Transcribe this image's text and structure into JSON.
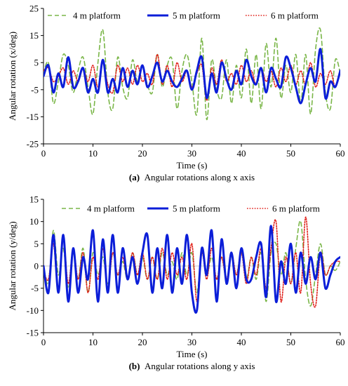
{
  "chart_data": [
    {
      "type": "line",
      "caption_prefix": "(a)",
      "caption": "Angular rotations along x axis",
      "xlabel": "Time (s)",
      "ylabel": "Angular rotation (x/deg)",
      "xlim": [
        0,
        60
      ],
      "ylim": [
        -25,
        25
      ],
      "xticks": [
        0,
        10,
        20,
        30,
        40,
        50,
        60
      ],
      "yticks": [
        -25,
        -15,
        -5,
        5,
        15,
        25
      ],
      "legend_position": "top",
      "grid": false,
      "series": [
        {
          "name": "4 m platform",
          "style": "dashed",
          "color": "#7ab648",
          "x": [
            0,
            1,
            2,
            3,
            4,
            5,
            6,
            7,
            8,
            9,
            10,
            11,
            12,
            13,
            14,
            15,
            16,
            17,
            18,
            19,
            20,
            21,
            22,
            23,
            24,
            25,
            26,
            27,
            28,
            29,
            30,
            31,
            32,
            33,
            34,
            35,
            36,
            37,
            38,
            39,
            40,
            41,
            42,
            43,
            44,
            45,
            46,
            47,
            48,
            49,
            50,
            51,
            52,
            53,
            54,
            55,
            56,
            57,
            58,
            59,
            60
          ],
          "y": [
            1,
            5,
            -10,
            -2,
            8,
            4,
            -6,
            2,
            7,
            -4,
            -14,
            5,
            17,
            -6,
            -12,
            7,
            -4,
            -8,
            6,
            -2,
            4,
            -3,
            -6,
            8,
            -4,
            4,
            6,
            -12,
            2,
            8,
            -2,
            -14,
            14,
            -16,
            6,
            -5,
            -8,
            6,
            -10,
            4,
            -8,
            10,
            -10,
            8,
            -12,
            12,
            -4,
            14,
            -8,
            4,
            -6,
            8,
            -10,
            8,
            -14,
            10,
            17,
            -6,
            -12,
            6,
            1
          ]
        },
        {
          "name": "5 m platform",
          "style": "solid",
          "color": "#0b1ed8",
          "x": [
            0,
            1,
            2,
            3,
            4,
            5,
            6,
            7,
            8,
            9,
            10,
            11,
            12,
            13,
            14,
            15,
            16,
            17,
            18,
            19,
            20,
            21,
            22,
            23,
            24,
            25,
            26,
            27,
            28,
            29,
            30,
            31,
            32,
            33,
            34,
            35,
            36,
            37,
            38,
            39,
            40,
            41,
            42,
            43,
            44,
            45,
            46,
            47,
            48,
            49,
            50,
            51,
            52,
            53,
            54,
            55,
            56,
            57,
            58,
            59,
            60
          ],
          "y": [
            0,
            4,
            -6,
            1,
            -4,
            7,
            -4,
            -2,
            3,
            -6,
            -1,
            -6,
            6,
            -6,
            -1,
            -6,
            3,
            -4,
            2,
            -3,
            4,
            -4,
            0,
            5,
            -2,
            2,
            -2,
            -4,
            -1,
            2,
            -5,
            2,
            7,
            -8,
            1,
            -6,
            5,
            -1,
            -5,
            2,
            -3,
            6,
            0,
            -3,
            3,
            -6,
            3,
            -1,
            -4,
            7,
            3,
            -4,
            -10,
            -3,
            3,
            -2,
            10,
            -8,
            -2,
            -4,
            2
          ]
        },
        {
          "name": "6 m platform",
          "style": "dotted",
          "color": "#e0201a",
          "x": [
            0,
            1,
            2,
            3,
            4,
            5,
            6,
            7,
            8,
            9,
            10,
            11,
            12,
            13,
            14,
            15,
            16,
            17,
            18,
            19,
            20,
            21,
            22,
            23,
            24,
            25,
            26,
            27,
            28,
            29,
            30,
            31,
            32,
            33,
            34,
            35,
            36,
            37,
            38,
            39,
            40,
            41,
            42,
            43,
            44,
            45,
            46,
            47,
            48,
            49,
            50,
            51,
            52,
            53,
            54,
            55,
            56,
            57,
            58,
            59,
            60
          ],
          "y": [
            2,
            3,
            -2,
            0,
            3,
            -3,
            2,
            -2,
            3,
            -2,
            4,
            -4,
            5,
            -3,
            -6,
            4,
            -2,
            3,
            -3,
            4,
            -2,
            1,
            -3,
            8,
            -3,
            4,
            -4,
            5,
            -2,
            2,
            -4,
            1,
            4,
            -9,
            3,
            -3,
            6,
            -2,
            1,
            -3,
            4,
            -2,
            2,
            -3,
            3,
            -2,
            2,
            -4,
            3,
            -2,
            4,
            -3,
            2,
            -3,
            5,
            -4,
            1,
            -3,
            2,
            -4,
            2
          ]
        }
      ]
    },
    {
      "type": "line",
      "caption_prefix": "(b)",
      "caption": "Angular rotations along y axis",
      "xlabel": "Time (s)",
      "ylabel": "Angular rotation (y/deg)",
      "xlim": [
        0,
        60
      ],
      "ylim": [
        -15,
        15
      ],
      "xticks": [
        0,
        10,
        20,
        30,
        40,
        50,
        60
      ],
      "yticks": [
        -15,
        -10,
        -5,
        0,
        5,
        10,
        15
      ],
      "legend_position": "top",
      "grid": false,
      "series": [
        {
          "name": "4 m platform",
          "style": "dashed",
          "color": "#7ab648",
          "x": [
            0,
            1,
            2,
            3,
            4,
            5,
            6,
            7,
            8,
            9,
            10,
            11,
            12,
            13,
            14,
            15,
            16,
            17,
            18,
            19,
            20,
            21,
            22,
            23,
            24,
            25,
            26,
            27,
            28,
            29,
            30,
            31,
            32,
            33,
            34,
            35,
            36,
            37,
            38,
            39,
            40,
            41,
            42,
            43,
            44,
            45,
            46,
            47,
            48,
            49,
            50,
            51,
            52,
            53,
            54,
            55,
            56,
            57,
            58,
            59,
            60
          ],
          "y": [
            0,
            -4,
            8,
            -2,
            4,
            -5,
            3,
            -3,
            4,
            -6,
            3,
            -2,
            2,
            -4,
            3,
            -2,
            1,
            -3,
            3,
            -2,
            2,
            -3,
            2,
            -3,
            3,
            -2,
            1,
            -3,
            3,
            -2,
            3,
            -6,
            3,
            -2,
            2,
            -3,
            2,
            -3,
            2,
            -2,
            3,
            -3,
            2,
            -3,
            3,
            -8,
            3,
            5,
            -2,
            3,
            -4,
            4,
            10,
            -3,
            -9,
            -2,
            5,
            -2,
            0,
            -1,
            1
          ]
        },
        {
          "name": "5 m platform",
          "style": "solid",
          "color": "#0b1ed8",
          "x": [
            0,
            1,
            2,
            3,
            4,
            5,
            6,
            7,
            8,
            9,
            10,
            11,
            12,
            13,
            14,
            15,
            16,
            17,
            18,
            19,
            20,
            21,
            22,
            23,
            24,
            25,
            26,
            27,
            28,
            29,
            30,
            31,
            32,
            33,
            34,
            35,
            36,
            37,
            38,
            39,
            40,
            41,
            42,
            43,
            44,
            45,
            46,
            47,
            48,
            49,
            50,
            51,
            52,
            53,
            54,
            55,
            56,
            57,
            58,
            59,
            60
          ],
          "y": [
            0,
            -6,
            7,
            -6,
            7,
            -8,
            4,
            -6,
            2,
            -3,
            8,
            -8,
            6,
            -6,
            7,
            -6,
            4,
            -3,
            2,
            -4,
            3,
            7,
            -6,
            4,
            -5,
            7,
            -6,
            4,
            -4,
            7,
            -6,
            -10,
            4,
            -2,
            8,
            -8,
            6,
            -4,
            3,
            -5,
            4,
            -3,
            -3,
            2,
            5,
            -7,
            9,
            -8,
            1,
            -4,
            5,
            -6,
            3,
            -4,
            2,
            -3,
            3,
            -5,
            -2,
            1,
            2
          ]
        },
        {
          "name": "6 m platform",
          "style": "dotted",
          "color": "#e0201a",
          "x": [
            0,
            1,
            2,
            3,
            4,
            5,
            6,
            7,
            8,
            9,
            10,
            11,
            12,
            13,
            14,
            15,
            16,
            17,
            18,
            19,
            20,
            21,
            22,
            23,
            24,
            25,
            26,
            27,
            28,
            29,
            30,
            31,
            32,
            33,
            34,
            35,
            36,
            37,
            38,
            39,
            40,
            41,
            42,
            43,
            44,
            45,
            46,
            47,
            48,
            49,
            50,
            51,
            52,
            53,
            54,
            55,
            56,
            57,
            58,
            59,
            60
          ],
          "y": [
            -1,
            -3,
            5,
            -6,
            6,
            -4,
            4,
            -3,
            3,
            -6,
            2,
            -3,
            4,
            -5,
            3,
            -2,
            2,
            -3,
            3,
            -2,
            3,
            -3,
            2,
            -3,
            4,
            -3,
            3,
            -2,
            2,
            -3,
            5,
            -8,
            3,
            -3,
            4,
            -3,
            2,
            -3,
            3,
            -2,
            3,
            -4,
            2,
            -2,
            4,
            -5,
            4,
            10,
            -8,
            2,
            -4,
            3,
            -6,
            11,
            -4,
            -9,
            3,
            -2,
            0,
            1,
            1
          ]
        }
      ]
    }
  ]
}
